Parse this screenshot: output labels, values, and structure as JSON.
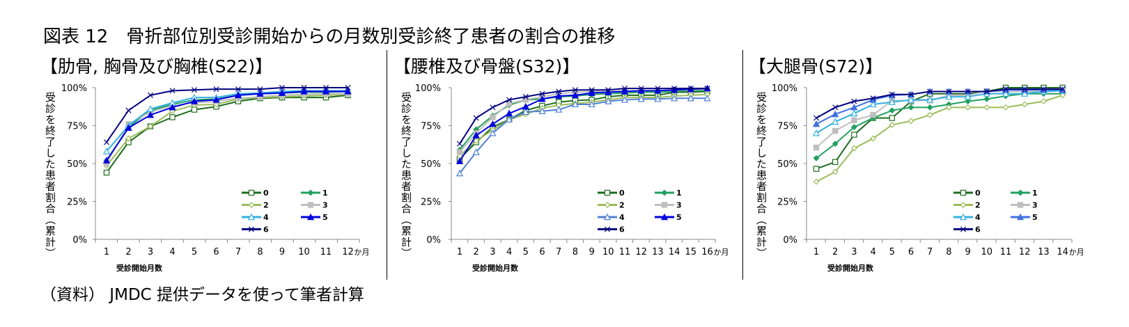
{
  "title": "図表 12　骨折部位別受診開始からの月数別受診終了患者の割合の推移",
  "source": "（資料） JMDC 提供データを使って筆者計算",
  "chart_data": [
    {
      "type": "line",
      "subtitle": "【肋骨, 胸骨及び胸椎(S22)】",
      "ylabel": "受診を終了した患者割合（累計）",
      "xlabel": "受診開始月数",
      "x_unit": "か月",
      "x": [
        1,
        2,
        3,
        4,
        5,
        6,
        7,
        8,
        9,
        10,
        11,
        12
      ],
      "ylim": [
        0,
        100
      ],
      "yticks": [
        "0%",
        "25%",
        "50%",
        "75%",
        "100%"
      ],
      "grid": false,
      "legend": "bottom-right",
      "series": [
        {
          "name": "0",
          "color": "#1d6b1d",
          "marker": "square-open",
          "values": [
            44,
            64,
            74.5,
            80.5,
            85.5,
            87.5,
            91,
            93,
            93.5,
            93.5,
            93.5,
            95
          ]
        },
        {
          "name": "1",
          "color": "#22a060",
          "marker": "diamond-filled",
          "values": [
            52,
            74,
            85,
            89,
            92,
            92.5,
            95,
            96,
            96.5,
            97,
            97,
            97.5
          ]
        },
        {
          "name": "2",
          "color": "#9bbb59",
          "marker": "diamond-open",
          "values": [
            48.5,
            66.5,
            74.5,
            84.5,
            88.5,
            89,
            92.5,
            93.5,
            94,
            94.5,
            95,
            95.5
          ]
        },
        {
          "name": "3",
          "color": "#bfbfbf",
          "marker": "square-filled",
          "values": [
            50,
            76,
            84,
            88,
            90,
            91,
            93,
            94,
            95,
            95.5,
            96,
            96
          ]
        },
        {
          "name": "4",
          "color": "#33b0e0",
          "marker": "triangle-open",
          "values": [
            58,
            75,
            86,
            90,
            93.5,
            93.5,
            96,
            96.5,
            97.5,
            98,
            98,
            98
          ]
        },
        {
          "name": "5",
          "color": "#0000e0",
          "marker": "triangle-filled",
          "values": [
            52,
            73.5,
            82,
            87,
            91,
            92,
            95,
            96,
            96.5,
            97.5,
            97.5,
            97.5
          ]
        },
        {
          "name": "6",
          "color": "#000080",
          "marker": "x",
          "values": [
            64,
            85,
            95,
            98,
            98.5,
            99,
            99,
            99,
            100,
            100,
            100,
            100
          ]
        }
      ]
    },
    {
      "type": "line",
      "subtitle": "【腰椎及び骨盤(S32)】",
      "ylabel": "受診を終了した患者割合（累計）",
      "xlabel": "受診開始月数",
      "x_unit": "か月",
      "x": [
        1,
        2,
        3,
        4,
        5,
        6,
        7,
        8,
        9,
        10,
        11,
        12,
        13,
        14,
        15,
        16
      ],
      "ylim": [
        0,
        100
      ],
      "yticks": [
        "0%",
        "25%",
        "50%",
        "75%",
        "100%"
      ],
      "grid": false,
      "legend": "bottom-right",
      "series": [
        {
          "name": "0",
          "color": "#1d6b1d",
          "marker": "square-open",
          "values": [
            53,
            64,
            74,
            79,
            85,
            88,
            90.5,
            91.5,
            92,
            94,
            95,
            95,
            95,
            97,
            97,
            97.5
          ]
        },
        {
          "name": "1",
          "color": "#22a060",
          "marker": "diamond-filled",
          "values": [
            59,
            72.5,
            81.5,
            88.5,
            92,
            92.5,
            94,
            94.5,
            95.5,
            96,
            96.5,
            97,
            97,
            97.5,
            98,
            98
          ]
        },
        {
          "name": "2",
          "color": "#9bbb59",
          "marker": "diamond-open",
          "values": [
            55,
            65,
            72,
            79,
            82.5,
            86.5,
            88.5,
            89.5,
            90.5,
            92,
            93.5,
            93.5,
            93.5,
            94.5,
            95,
            95.5
          ]
        },
        {
          "name": "3",
          "color": "#bfbfbf",
          "marker": "square-filled",
          "values": [
            57.5,
            70,
            80.5,
            89.5,
            92,
            94,
            96,
            97,
            97.5,
            97.5,
            98,
            98,
            98,
            98.5,
            98.5,
            99
          ]
        },
        {
          "name": "4",
          "color": "#5080d8",
          "marker": "triangle-open",
          "values": [
            43.5,
            57.5,
            70,
            79,
            84,
            84.5,
            85.5,
            89,
            89,
            91,
            92,
            92.5,
            92.5,
            93,
            93,
            93
          ]
        },
        {
          "name": "5",
          "color": "#0000e0",
          "marker": "triangle-filled",
          "values": [
            51.5,
            68.5,
            76,
            83,
            87.5,
            92.5,
            94.5,
            95,
            96.5,
            97,
            97.5,
            98,
            98,
            98.5,
            99,
            99.5
          ]
        },
        {
          "name": "6",
          "color": "#000080",
          "marker": "x",
          "values": [
            63,
            80,
            87,
            92,
            94,
            96,
            97.5,
            98.5,
            98.5,
            98.5,
            99.5,
            99.5,
            99.5,
            99.5,
            99.5,
            99.5
          ]
        }
      ]
    },
    {
      "type": "line",
      "subtitle": "【大腿骨(S72)】",
      "ylabel": "受診を終了した患者割合（累計）",
      "xlabel": "受診開始月数",
      "x_unit": "か月",
      "x": [
        1,
        2,
        3,
        4,
        5,
        6,
        7,
        8,
        9,
        10,
        11,
        12,
        13,
        14
      ],
      "ylim": [
        0,
        100
      ],
      "yticks": [
        "0%",
        "25%",
        "50%",
        "75%",
        "100%"
      ],
      "grid": false,
      "legend": "bottom-right",
      "series": [
        {
          "name": "0",
          "color": "#1d6b1d",
          "marker": "square-open",
          "values": [
            46.5,
            51,
            69,
            80,
            80,
            91,
            96,
            96,
            96,
            97.5,
            100,
            100,
            100,
            100
          ]
        },
        {
          "name": "1",
          "color": "#22a060",
          "marker": "diamond-filled",
          "values": [
            53.5,
            63,
            74,
            80,
            85,
            87,
            87,
            89,
            91,
            92.5,
            94.5,
            96,
            96,
            96
          ]
        },
        {
          "name": "2",
          "color": "#9bbb59",
          "marker": "diamond-open",
          "values": [
            38,
            44.5,
            60,
            66.5,
            75.5,
            78,
            82,
            87,
            87,
            87,
            87,
            89,
            91,
            95
          ]
        },
        {
          "name": "3",
          "color": "#bfbfbf",
          "marker": "square-filled",
          "values": [
            60.5,
            71.5,
            78.5,
            82,
            91.5,
            91.5,
            91.5,
            95,
            95,
            97.5,
            97.5,
            97.5,
            97.5,
            98
          ]
        },
        {
          "name": "4",
          "color": "#33b0e0",
          "marker": "triangle-open",
          "values": [
            70,
            77.5,
            83,
            89,
            90.5,
            92,
            92,
            94,
            94,
            96,
            96,
            96,
            97.5,
            98
          ]
        },
        {
          "name": "5",
          "color": "#4070e0",
          "marker": "triangle-filled",
          "values": [
            76,
            82.5,
            87,
            92,
            95,
            95.5,
            97.5,
            97.5,
            97.5,
            97.5,
            98.5,
            98.5,
            98.5,
            98.5
          ]
        },
        {
          "name": "6",
          "color": "#000080",
          "marker": "x",
          "values": [
            80,
            87,
            91,
            93,
            95.5,
            95.5,
            97.5,
            97.5,
            97.5,
            97.5,
            99,
            99,
            99,
            99
          ]
        }
      ]
    }
  ]
}
